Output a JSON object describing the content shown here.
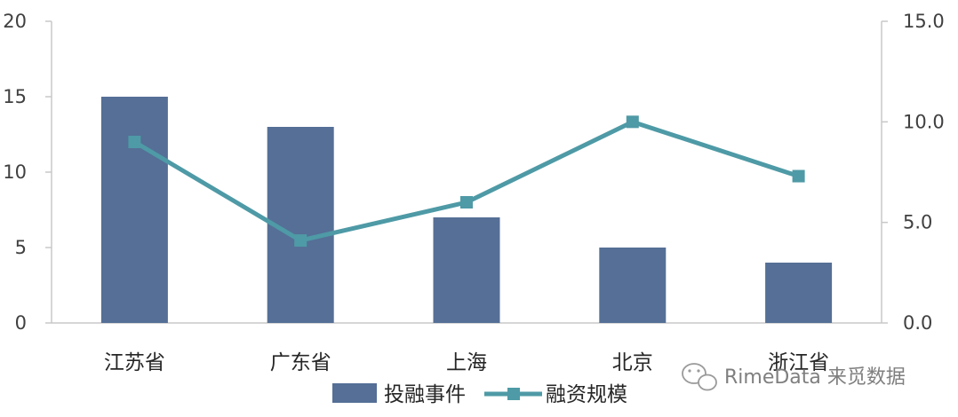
{
  "chart_data": {
    "type": "bar",
    "categories": [
      "江苏省",
      "广东省",
      "上海",
      "北京",
      "浙江省"
    ],
    "series": [
      {
        "name": "投融事件",
        "type": "bar",
        "axis": "left",
        "values": [
          15,
          13,
          7,
          5,
          4
        ],
        "color": "#556f96"
      },
      {
        "name": "融资规模",
        "type": "line",
        "axis": "right",
        "marker": "square",
        "values": [
          9.0,
          4.1,
          6.0,
          10.0,
          7.3
        ],
        "color": "#4e9aa6"
      }
    ],
    "y_left": {
      "lim": [
        0,
        20
      ],
      "ticks": [
        "0",
        "5",
        "10",
        "15",
        "20"
      ]
    },
    "y_right": {
      "lim": [
        0,
        15
      ],
      "ticks": [
        "0.0",
        "5.0",
        "10.0",
        "15.0"
      ]
    },
    "grid": false,
    "legend": "bottom-center"
  },
  "watermark": {
    "text": "RimeData 来觅数据",
    "icon": "wechat-icon"
  },
  "colors": {
    "axis": "#c8c8c8",
    "text": "#404040"
  }
}
